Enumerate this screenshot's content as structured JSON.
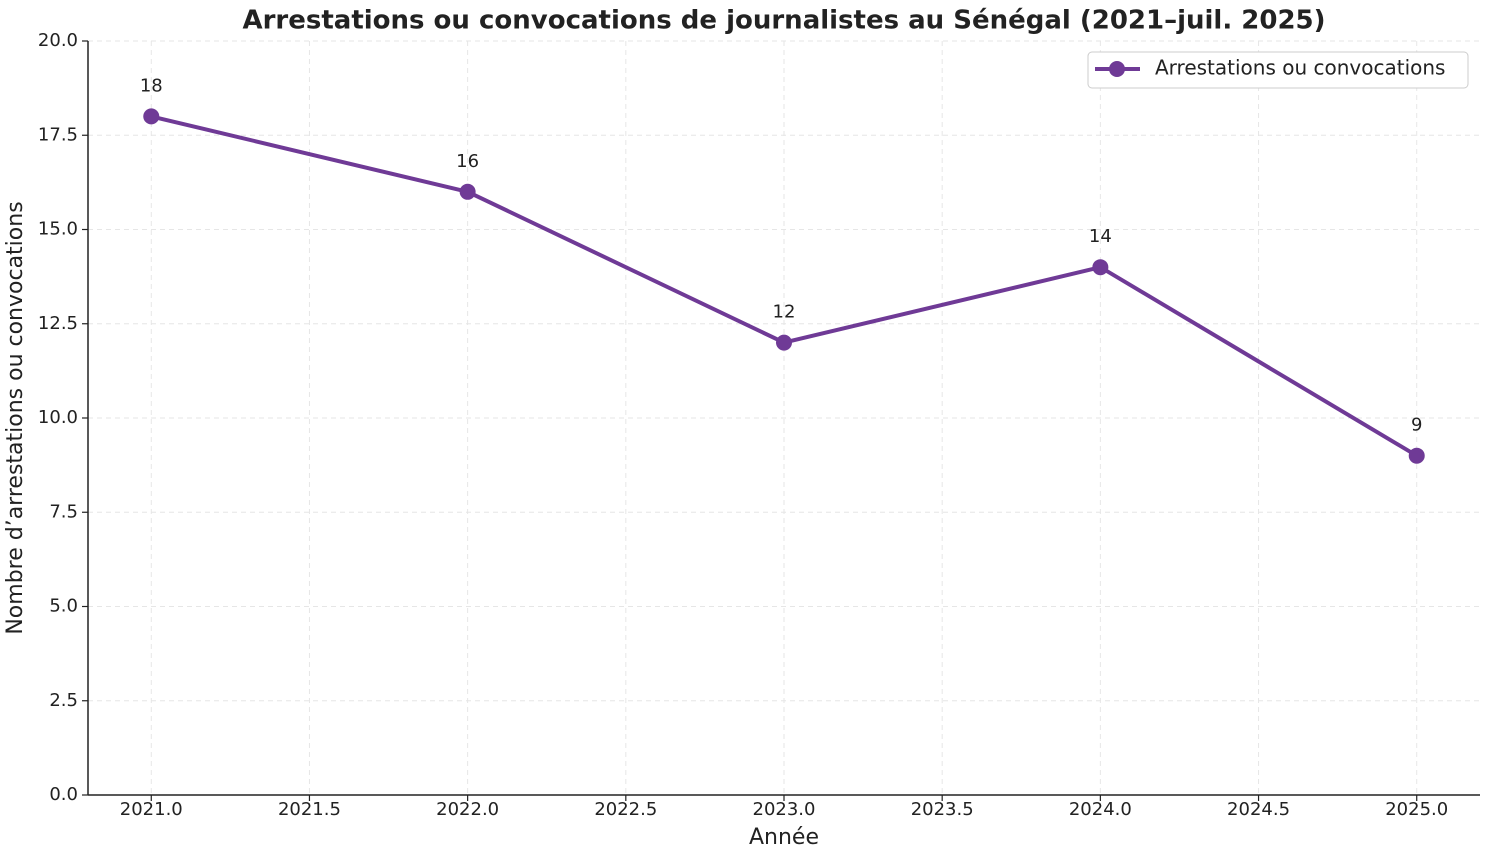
{
  "chart_data": {
    "type": "line",
    "title": "Arrestations ou convocations de journalistes au Sénégal (2021–juil. 2025)",
    "xlabel": "Année",
    "ylabel": "Nombre d’arrestations ou convocations",
    "x": [
      2021,
      2022,
      2023,
      2024,
      2025
    ],
    "series": [
      {
        "name": "Arrestations ou convocations",
        "color": "#6f3a96",
        "values": [
          18,
          16,
          12,
          14,
          9
        ]
      }
    ],
    "xlim": [
      2020.8,
      2025.2
    ],
    "xticks": [
      {
        "value": 2021,
        "label": "2021.0"
      },
      2021.5,
      {
        "value": 2022,
        "label": "2022.0"
      },
      2022.5,
      {
        "value": 2023,
        "label": "2023.0"
      },
      2023.5,
      {
        "value": 2024,
        "label": "2024.0"
      },
      2024.5,
      {
        "value": 2025,
        "label": "2025.0"
      }
    ],
    "ylim": [
      0,
      20
    ],
    "yticks": [
      {
        "value": 0,
        "label": "0.0"
      },
      2.5,
      {
        "value": 5,
        "label": "5.0"
      },
      7.5,
      {
        "value": 10,
        "label": "10.0"
      },
      12.5,
      {
        "value": 15,
        "label": "15.0"
      },
      17.5,
      {
        "value": 20,
        "label": "20.0"
      }
    ],
    "grid": true,
    "legend": "upper right"
  }
}
